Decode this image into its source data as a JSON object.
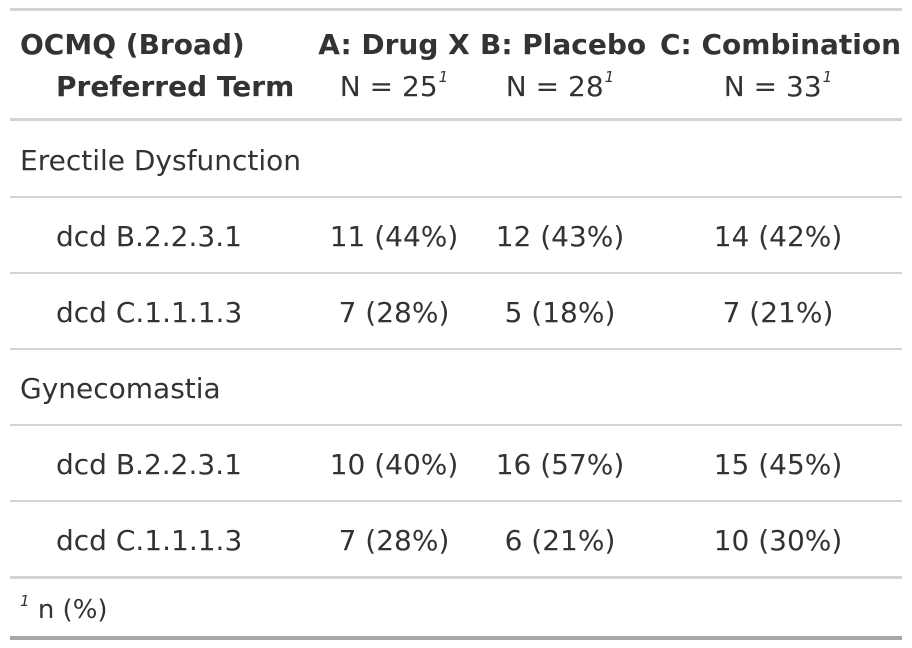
{
  "header": {
    "col0_line1": "OCMQ (Broad)",
    "col0_line2": "Preferred Term",
    "columns": [
      {
        "title": "A: Drug X",
        "n_label": "N = 25",
        "footnote_mark": "1"
      },
      {
        "title": "B: Placebo",
        "n_label": "N = 28",
        "footnote_mark": "1"
      },
      {
        "title": "C: Combination",
        "n_label": "N = 33",
        "footnote_mark": "1"
      }
    ]
  },
  "groups": [
    {
      "label": "Erectile Dysfunction",
      "rows": [
        {
          "term": "dcd B.2.2.3.1",
          "values": [
            "11 (44%)",
            "12 (43%)",
            "14 (42%)"
          ]
        },
        {
          "term": "dcd C.1.1.1.3",
          "values": [
            "7 (28%)",
            "5 (18%)",
            "7 (21%)"
          ]
        }
      ]
    },
    {
      "label": "Gynecomastia",
      "rows": [
        {
          "term": "dcd B.2.2.3.1",
          "values": [
            "10 (40%)",
            "16 (57%)",
            "15 (45%)"
          ]
        },
        {
          "term": "dcd C.1.1.1.3",
          "values": [
            "7 (28%)",
            "6 (21%)",
            "10 (30%)"
          ]
        }
      ]
    }
  ],
  "footnote": {
    "mark": "1",
    "text": "n (%)"
  }
}
